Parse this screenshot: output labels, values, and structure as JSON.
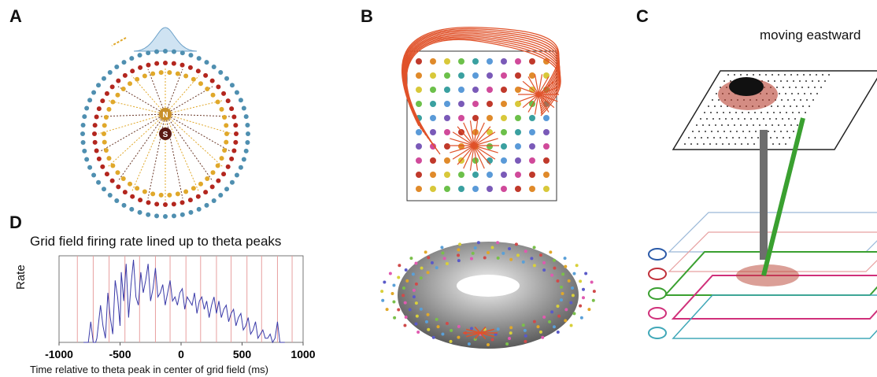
{
  "panels": {
    "a": {
      "letter": "A",
      "inner_label": "N",
      "outer_label": "S"
    },
    "b": {
      "letter": "B"
    },
    "c": {
      "letter": "C",
      "title": "moving eastward"
    },
    "d": {
      "letter": "D",
      "title": "Grid field firing rate lined up to theta peaks",
      "ylabel": "Rate",
      "xlabel": "Time relative to theta peak in center of grid field (ms)"
    }
  },
  "colors": {
    "ring_blue": "#4f8fb0",
    "ring_red": "#b3261e",
    "ring_gold": "#e0a82a",
    "arrow_orange": "#e0522a",
    "trace": "#3a3aa8",
    "theta_line": "#e8a0a0",
    "arrow_gray": "#6e6e6e",
    "arrow_green": "#3aa030"
  },
  "chart_data": {
    "type": "line",
    "title": "Grid field firing rate lined up to theta peaks",
    "xlabel": "Time relative to theta peak in center of grid field (ms)",
    "ylabel": "Rate",
    "xlim": [
      -1000,
      1000
    ],
    "xticks": [
      -1000,
      -500,
      0,
      500,
      1000
    ],
    "theta_peaks_ms": [
      -850,
      -720,
      -590,
      -460,
      -340,
      -210,
      -90,
      40,
      160,
      290,
      410,
      540,
      660,
      790,
      910
    ],
    "series": [
      {
        "x": [
          -800,
          -760,
          -740,
          -720,
          -700,
          -690,
          -660,
          -640,
          -620,
          -600,
          -580,
          -560,
          -540,
          -520,
          -500,
          -490,
          -470,
          -450,
          -430,
          -410,
          -390,
          -370,
          -350,
          -330,
          -310,
          -290,
          -270,
          -250,
          -230,
          -210,
          -190,
          -170,
          -150,
          -130,
          -110,
          -90,
          -70,
          -50,
          -30,
          -10,
          10,
          30,
          50,
          70,
          90,
          110,
          130,
          150,
          170,
          190,
          210,
          230,
          250,
          270,
          290,
          310,
          330,
          350,
          370,
          390,
          410,
          430,
          450,
          470,
          490,
          510,
          530,
          550,
          570,
          590,
          610,
          630,
          650,
          670,
          690,
          710,
          730,
          750,
          770,
          790,
          810,
          830,
          850
        ],
        "y": [
          0,
          0,
          0.25,
          0,
          0,
          0.05,
          0.45,
          0.2,
          0.05,
          0.6,
          0.3,
          0.1,
          0.75,
          0.55,
          0.2,
          0.85,
          0.5,
          0.95,
          0.3,
          0.7,
          1.0,
          0.55,
          0.45,
          0.85,
          0.6,
          0.75,
          0.95,
          0.5,
          0.65,
          0.9,
          0.55,
          0.6,
          0.7,
          0.45,
          0.6,
          0.75,
          0.5,
          0.55,
          0.45,
          0.6,
          0.65,
          0.4,
          0.55,
          0.5,
          0.45,
          0.6,
          0.35,
          0.5,
          0.55,
          0.4,
          0.5,
          0.3,
          0.45,
          0.55,
          0.35,
          0.5,
          0.3,
          0.4,
          0.45,
          0.25,
          0.35,
          0.4,
          0.2,
          0.3,
          0.35,
          0.15,
          0.2,
          0.3,
          0.1,
          0.15,
          0.25,
          0.05,
          0.1,
          0.15,
          0.05,
          0.05,
          0.1,
          0,
          0.05,
          0.25,
          0,
          0,
          0
        ]
      }
    ]
  }
}
